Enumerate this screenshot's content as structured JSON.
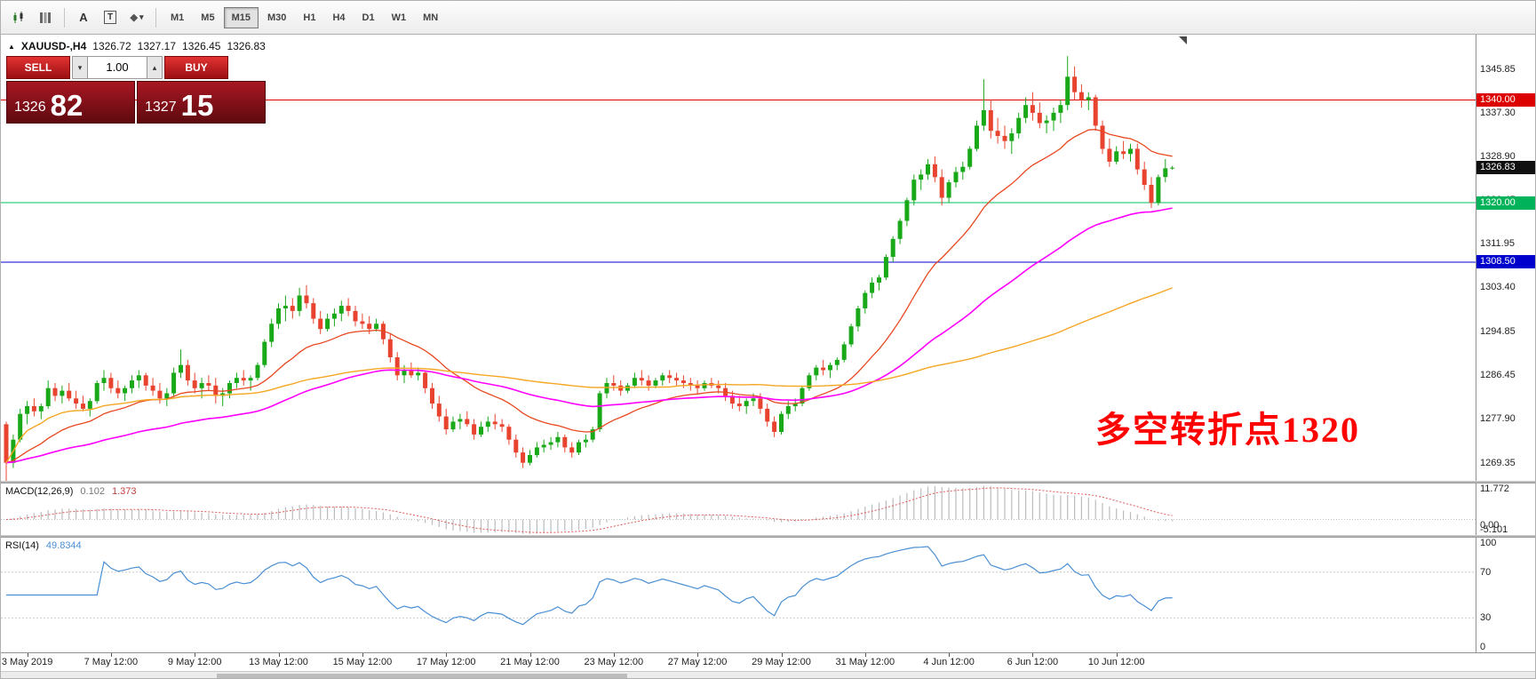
{
  "toolbar": {
    "tools": [
      {
        "name": "candlestick-chart-icon",
        "glyph": ""
      },
      {
        "name": "grid-profile-icon",
        "glyph": ""
      },
      {
        "name": "font-tool-icon",
        "glyph": "A"
      },
      {
        "name": "text-tool-icon",
        "glyph": "T"
      },
      {
        "name": "shapes-tool-icon",
        "glyph": "◆"
      },
      {
        "name": "dropdown-caret-icon",
        "glyph": "▾"
      }
    ],
    "timeframes": [
      {
        "label": "M1",
        "active": false
      },
      {
        "label": "M5",
        "active": false
      },
      {
        "label": "M15",
        "active": true
      },
      {
        "label": "M30",
        "active": false
      },
      {
        "label": "H1",
        "active": false
      },
      {
        "label": "H4",
        "active": false
      },
      {
        "label": "D1",
        "active": false
      },
      {
        "label": "W1",
        "active": false
      },
      {
        "label": "MN",
        "active": false
      }
    ]
  },
  "symbol_header": {
    "marker": "▲",
    "symbol": "XAUUSD-,H4",
    "open": "1326.72",
    "high": "1327.17",
    "low": "1326.45",
    "close": "1326.83"
  },
  "trade_panel": {
    "sell_label": "SELL",
    "buy_label": "BUY",
    "volume": "1.00",
    "down_icon": "▾",
    "up_icon": "▴",
    "bid_main": "1326",
    "bid_big": "82",
    "ask_main": "1327",
    "ask_big": "15"
  },
  "annotation": {
    "text": "多空转折点1320",
    "color": "#ff0000"
  },
  "price_axis": {
    "labels": [
      "1345.85",
      "1337.30",
      "1328.90",
      "1320.45",
      "1311.95",
      "1303.40",
      "1294.85",
      "1286.45",
      "1277.90",
      "1269.35"
    ],
    "markers": [
      {
        "text": "1340.00",
        "value": 1340.0,
        "color": "#dd0000"
      },
      {
        "text": "1326.83",
        "value": 1326.83,
        "color": "#101010"
      },
      {
        "text": "1320.00",
        "value": 1320.0,
        "color": "#00b35a"
      },
      {
        "text": "1308.50",
        "value": 1308.5,
        "color": "#0000cc"
      }
    ]
  },
  "time_axis": {
    "labels": [
      {
        "text": "3 May 2019",
        "index": 3
      },
      {
        "text": "7 May 12:00",
        "index": 15
      },
      {
        "text": "9 May 12:00",
        "index": 27
      },
      {
        "text": "13 May 12:00",
        "index": 39
      },
      {
        "text": "15 May 12:00",
        "index": 51
      },
      {
        "text": "17 May 12:00",
        "index": 63
      },
      {
        "text": "21 May 12:00",
        "index": 75
      },
      {
        "text": "23 May 12:00",
        "index": 87
      },
      {
        "text": "27 May 12:00",
        "index": 99
      },
      {
        "text": "29 May 12:00",
        "index": 111
      },
      {
        "text": "31 May 12:00",
        "index": 123
      },
      {
        "text": "4 Jun 12:00",
        "index": 135
      },
      {
        "text": "6 Jun 12:00",
        "index": 147
      },
      {
        "text": "10 Jun 12:00",
        "index": 159
      }
    ]
  },
  "chart_data": {
    "type": "candlestick",
    "symbol": "XAUUSD-",
    "timeframe": "H4",
    "title": "XAUUSD- H4 gold candlestick chart",
    "y_range": [
      1266.0,
      1352.5
    ],
    "up_color": "#18a818",
    "down_color": "#e8432f",
    "last_price": 1326.83,
    "h_lines": [
      {
        "price": 1340.0,
        "color": "#dd0000"
      },
      {
        "price": 1320.0,
        "color": "#00c060"
      },
      {
        "price": 1308.5,
        "color": "#0000cc"
      }
    ],
    "moving_averages": [
      {
        "name": "ma-fast",
        "type": "ema",
        "period": 20,
        "color": "#e84820",
        "width": 1.3
      },
      {
        "name": "ma-mid",
        "type": "ema",
        "period": 62,
        "color": "#ff00ff",
        "width": 1.6
      },
      {
        "name": "ma-slow",
        "type": "sma",
        "period": 96,
        "color": "#f5a623",
        "width": 1.4
      }
    ],
    "indicators": {
      "macd": {
        "label": "MACD(12,26,9)",
        "fast": 12,
        "slow": 26,
        "signal": 9,
        "main_value": "0.102",
        "signal_value": "1.373",
        "y_range": [
          -5.101,
          11.772
        ],
        "axis_labels": [
          "11.772",
          "0.00",
          "-5.101"
        ],
        "histogram_color": "#bbbbbb",
        "signal_color": "#e05858"
      },
      "rsi": {
        "label": "RSI(14)",
        "period": 14,
        "value": "49.8344",
        "levels": [
          70,
          30
        ],
        "axis_labels": [
          "100",
          "70",
          "30",
          "0"
        ],
        "line_color": "#4a8fd4"
      }
    },
    "ohlc": [
      [
        1277,
        1277.5,
        1266,
        1269.5
      ],
      [
        1269.5,
        1275,
        1268.5,
        1274
      ],
      [
        1274,
        1280,
        1273.5,
        1279
      ],
      [
        1279,
        1281.5,
        1277,
        1280.5
      ],
      [
        1280.5,
        1282,
        1278.5,
        1279.5
      ],
      [
        1279.5,
        1281,
        1278,
        1280.5
      ],
      [
        1280.5,
        1285.5,
        1280,
        1284
      ],
      [
        1284,
        1285,
        1281.5,
        1282.5
      ],
      [
        1282.5,
        1284.5,
        1281,
        1283.5
      ],
      [
        1283.5,
        1285,
        1281.5,
        1282
      ],
      [
        1282,
        1283.5,
        1280,
        1281
      ],
      [
        1281,
        1282.5,
        1279.5,
        1280
      ],
      [
        1280,
        1282,
        1278.5,
        1281.5
      ],
      [
        1281.5,
        1285.5,
        1281,
        1285
      ],
      [
        1285,
        1287.5,
        1283.5,
        1286
      ],
      [
        1286,
        1287,
        1283,
        1284
      ],
      [
        1284,
        1285.5,
        1282,
        1283
      ],
      [
        1283,
        1284.5,
        1281.5,
        1284
      ],
      [
        1284,
        1286.5,
        1283,
        1285.5
      ],
      [
        1285.5,
        1287.5,
        1284,
        1286.5
      ],
      [
        1286.5,
        1287,
        1283.5,
        1284.5
      ],
      [
        1284.5,
        1286,
        1282.5,
        1283.5
      ],
      [
        1283.5,
        1285,
        1281,
        1282
      ],
      [
        1282,
        1284,
        1280.5,
        1283
      ],
      [
        1283,
        1288,
        1282.5,
        1287
      ],
      [
        1287,
        1291.5,
        1286,
        1288.5
      ],
      [
        1288.5,
        1289.5,
        1284.5,
        1285.5
      ],
      [
        1285.5,
        1287,
        1283,
        1284
      ],
      [
        1284,
        1286,
        1282,
        1285
      ],
      [
        1285,
        1286.5,
        1283.5,
        1284.5
      ],
      [
        1284.5,
        1286,
        1281,
        1282.5
      ],
      [
        1282.5,
        1284,
        1280.5,
        1283
      ],
      [
        1283,
        1285.5,
        1282,
        1285
      ],
      [
        1285,
        1287,
        1284,
        1286
      ],
      [
        1286,
        1287.5,
        1284.5,
        1285.5
      ],
      [
        1285.5,
        1286.5,
        1283.5,
        1286
      ],
      [
        1286,
        1289,
        1285.5,
        1288.5
      ],
      [
        1288.5,
        1293.5,
        1288,
        1293
      ],
      [
        1293,
        1297.5,
        1292,
        1296.5
      ],
      [
        1296.5,
        1300.5,
        1295.5,
        1299.5
      ],
      [
        1299.5,
        1302,
        1297,
        1300
      ],
      [
        1300,
        1301.5,
        1297.5,
        1299
      ],
      [
        1299,
        1303.5,
        1298,
        1302
      ],
      [
        1302,
        1304,
        1299.5,
        1300.5
      ],
      [
        1300.5,
        1301.5,
        1296.5,
        1297.5
      ],
      [
        1297.5,
        1299,
        1294.5,
        1295.5
      ],
      [
        1295.5,
        1298.5,
        1295,
        1297.5
      ],
      [
        1297.5,
        1299.5,
        1296,
        1298.5
      ],
      [
        1298.5,
        1301,
        1297,
        1300
      ],
      [
        1300,
        1301.5,
        1298,
        1299
      ],
      [
        1299,
        1300,
        1296,
        1297
      ],
      [
        1297,
        1298.5,
        1295.5,
        1296.5
      ],
      [
        1296.5,
        1298,
        1294.5,
        1295.5
      ],
      [
        1295.5,
        1297.5,
        1295,
        1296.5
      ],
      [
        1296.5,
        1297,
        1292.5,
        1293.5
      ],
      [
        1293.5,
        1294.5,
        1289,
        1290
      ],
      [
        1290,
        1291,
        1285.5,
        1286.5
      ],
      [
        1286.5,
        1288.5,
        1285,
        1287.5
      ],
      [
        1287.5,
        1289,
        1286,
        1286.5
      ],
      [
        1286.5,
        1288,
        1285.5,
        1287
      ],
      [
        1287,
        1287.5,
        1283,
        1284
      ],
      [
        1284,
        1285,
        1280,
        1281
      ],
      [
        1281,
        1282.5,
        1277.5,
        1278.5
      ],
      [
        1278.5,
        1280,
        1275,
        1276
      ],
      [
        1276,
        1278.5,
        1275.5,
        1277.5
      ],
      [
        1277.5,
        1279,
        1276,
        1278
      ],
      [
        1278,
        1279.5,
        1276.5,
        1277
      ],
      [
        1277,
        1278,
        1274,
        1275
      ],
      [
        1275,
        1277.5,
        1274.5,
        1276.5
      ],
      [
        1276.5,
        1278.5,
        1275.5,
        1277.5
      ],
      [
        1277.5,
        1279,
        1276,
        1277
      ],
      [
        1277,
        1278,
        1275.5,
        1276.5
      ],
      [
        1276.5,
        1277,
        1273,
        1274
      ],
      [
        1274,
        1275,
        1270.5,
        1271.5
      ],
      [
        1271.5,
        1272.5,
        1268.5,
        1269.5
      ],
      [
        1269.5,
        1272,
        1269,
        1271
      ],
      [
        1271,
        1273.5,
        1270.5,
        1272.5
      ],
      [
        1272.5,
        1274,
        1271.5,
        1273
      ],
      [
        1273,
        1274.5,
        1272,
        1273.5
      ],
      [
        1273.5,
        1275.5,
        1272.5,
        1274.5
      ],
      [
        1274.5,
        1275,
        1271.5,
        1272.5
      ],
      [
        1272.5,
        1273.5,
        1270.5,
        1271.5
      ],
      [
        1271.5,
        1274,
        1271,
        1273.5
      ],
      [
        1273.5,
        1275,
        1272.5,
        1274
      ],
      [
        1274,
        1276.5,
        1273.5,
        1276
      ],
      [
        1276,
        1283.5,
        1275.5,
        1283
      ],
      [
        1283,
        1286,
        1282,
        1285
      ],
      [
        1285,
        1286.5,
        1283.5,
        1284.5
      ],
      [
        1284.5,
        1285.5,
        1282.5,
        1283.5
      ],
      [
        1283.5,
        1285,
        1283,
        1284.5
      ],
      [
        1284.5,
        1287,
        1284,
        1286
      ],
      [
        1286,
        1287.5,
        1284.5,
        1285.5
      ],
      [
        1285.5,
        1286.5,
        1283.5,
        1284.5
      ],
      [
        1284.5,
        1286,
        1284,
        1285.5
      ],
      [
        1285.5,
        1287,
        1284.5,
        1286.5
      ],
      [
        1286.5,
        1287.5,
        1285,
        1286
      ],
      [
        1286,
        1287,
        1284.5,
        1285.5
      ],
      [
        1285.5,
        1286.5,
        1284,
        1285
      ],
      [
        1285,
        1286,
        1283.5,
        1284.5
      ],
      [
        1284.5,
        1285.5,
        1283,
        1284
      ],
      [
        1284,
        1285.5,
        1283.5,
        1285
      ],
      [
        1285,
        1286,
        1284,
        1284.5
      ],
      [
        1284.5,
        1285.5,
        1283,
        1284
      ],
      [
        1284,
        1285,
        1281.5,
        1282.5
      ],
      [
        1282.5,
        1283.5,
        1280,
        1281
      ],
      [
        1281,
        1282.5,
        1279.5,
        1280.5
      ],
      [
        1280.5,
        1282,
        1279,
        1281.5
      ],
      [
        1281.5,
        1283,
        1280.5,
        1282
      ],
      [
        1282,
        1283,
        1279,
        1280
      ],
      [
        1280,
        1281,
        1276.5,
        1277.5
      ],
      [
        1277.5,
        1278.5,
        1274.5,
        1275.5
      ],
      [
        1275.5,
        1279.5,
        1275,
        1279
      ],
      [
        1279,
        1281.5,
        1278,
        1280.5
      ],
      [
        1280.5,
        1282,
        1279.5,
        1281
      ],
      [
        1281,
        1284.5,
        1280.5,
        1284
      ],
      [
        1284,
        1287,
        1283.5,
        1286.5
      ],
      [
        1286.5,
        1288.5,
        1285.5,
        1288
      ],
      [
        1288,
        1289.5,
        1286.5,
        1287.5
      ],
      [
        1287.5,
        1289,
        1286,
        1288.5
      ],
      [
        1288.5,
        1290,
        1287.5,
        1289.5
      ],
      [
        1289.5,
        1293,
        1289,
        1292.5
      ],
      [
        1292.5,
        1296.5,
        1292,
        1296
      ],
      [
        1296,
        1300,
        1295,
        1299.5
      ],
      [
        1299.5,
        1303,
        1298.5,
        1302.5
      ],
      [
        1302.5,
        1305.5,
        1301.5,
        1304.5
      ],
      [
        1304.5,
        1306,
        1303,
        1305.5
      ],
      [
        1305.5,
        1310,
        1305,
        1309.5
      ],
      [
        1309.5,
        1313.5,
        1308.5,
        1313
      ],
      [
        1313,
        1317,
        1312,
        1316.5
      ],
      [
        1316.5,
        1321,
        1315.5,
        1320.5
      ],
      [
        1320.5,
        1325.5,
        1319.5,
        1324.5
      ],
      [
        1324.5,
        1326.5,
        1322.5,
        1325.5
      ],
      [
        1325.5,
        1328.5,
        1324.5,
        1327.5
      ],
      [
        1327.5,
        1329,
        1324,
        1325
      ],
      [
        1325,
        1326.5,
        1319.5,
        1321
      ],
      [
        1321,
        1324.5,
        1320,
        1324
      ],
      [
        1324,
        1327,
        1323,
        1326
      ],
      [
        1326,
        1328,
        1324.5,
        1327
      ],
      [
        1327,
        1331,
        1326.5,
        1330.5
      ],
      [
        1330.5,
        1336,
        1330,
        1335
      ],
      [
        1335,
        1344,
        1334,
        1338
      ],
      [
        1338,
        1340,
        1332.5,
        1334
      ],
      [
        1334,
        1336.5,
        1331.5,
        1333
      ],
      [
        1333,
        1335,
        1330.5,
        1332
      ],
      [
        1332,
        1334.5,
        1329.5,
        1333.5
      ],
      [
        1333.5,
        1337.5,
        1332.5,
        1336.5
      ],
      [
        1336.5,
        1340.5,
        1335.5,
        1339
      ],
      [
        1339,
        1341.5,
        1336,
        1337.5
      ],
      [
        1337.5,
        1339.5,
        1334.5,
        1335.5
      ],
      [
        1335.5,
        1337,
        1333.5,
        1336
      ],
      [
        1336,
        1338.5,
        1334,
        1337.5
      ],
      [
        1337.5,
        1340,
        1335.5,
        1339
      ],
      [
        1339,
        1348.5,
        1338,
        1344.5
      ],
      [
        1344.5,
        1346.5,
        1340,
        1341.5
      ],
      [
        1341.5,
        1343,
        1338.5,
        1340
      ],
      [
        1340,
        1341.5,
        1338,
        1340.5
      ],
      [
        1340.5,
        1341,
        1334,
        1335
      ],
      [
        1335,
        1336,
        1329.5,
        1330.5
      ],
      [
        1330.5,
        1332.5,
        1327,
        1328
      ],
      [
        1328,
        1331,
        1327.5,
        1330
      ],
      [
        1330,
        1332,
        1328.5,
        1329.5
      ],
      [
        1329.5,
        1331.5,
        1328,
        1330.5
      ],
      [
        1330.5,
        1331.5,
        1325.5,
        1326.5
      ],
      [
        1326.5,
        1328,
        1322.5,
        1323.5
      ],
      [
        1323.5,
        1325,
        1319,
        1320
      ],
      [
        1320,
        1325.5,
        1319.5,
        1325
      ],
      [
        1325,
        1328.5,
        1324,
        1326.7
      ],
      [
        1326.72,
        1327.17,
        1326.45,
        1326.83
      ]
    ]
  }
}
